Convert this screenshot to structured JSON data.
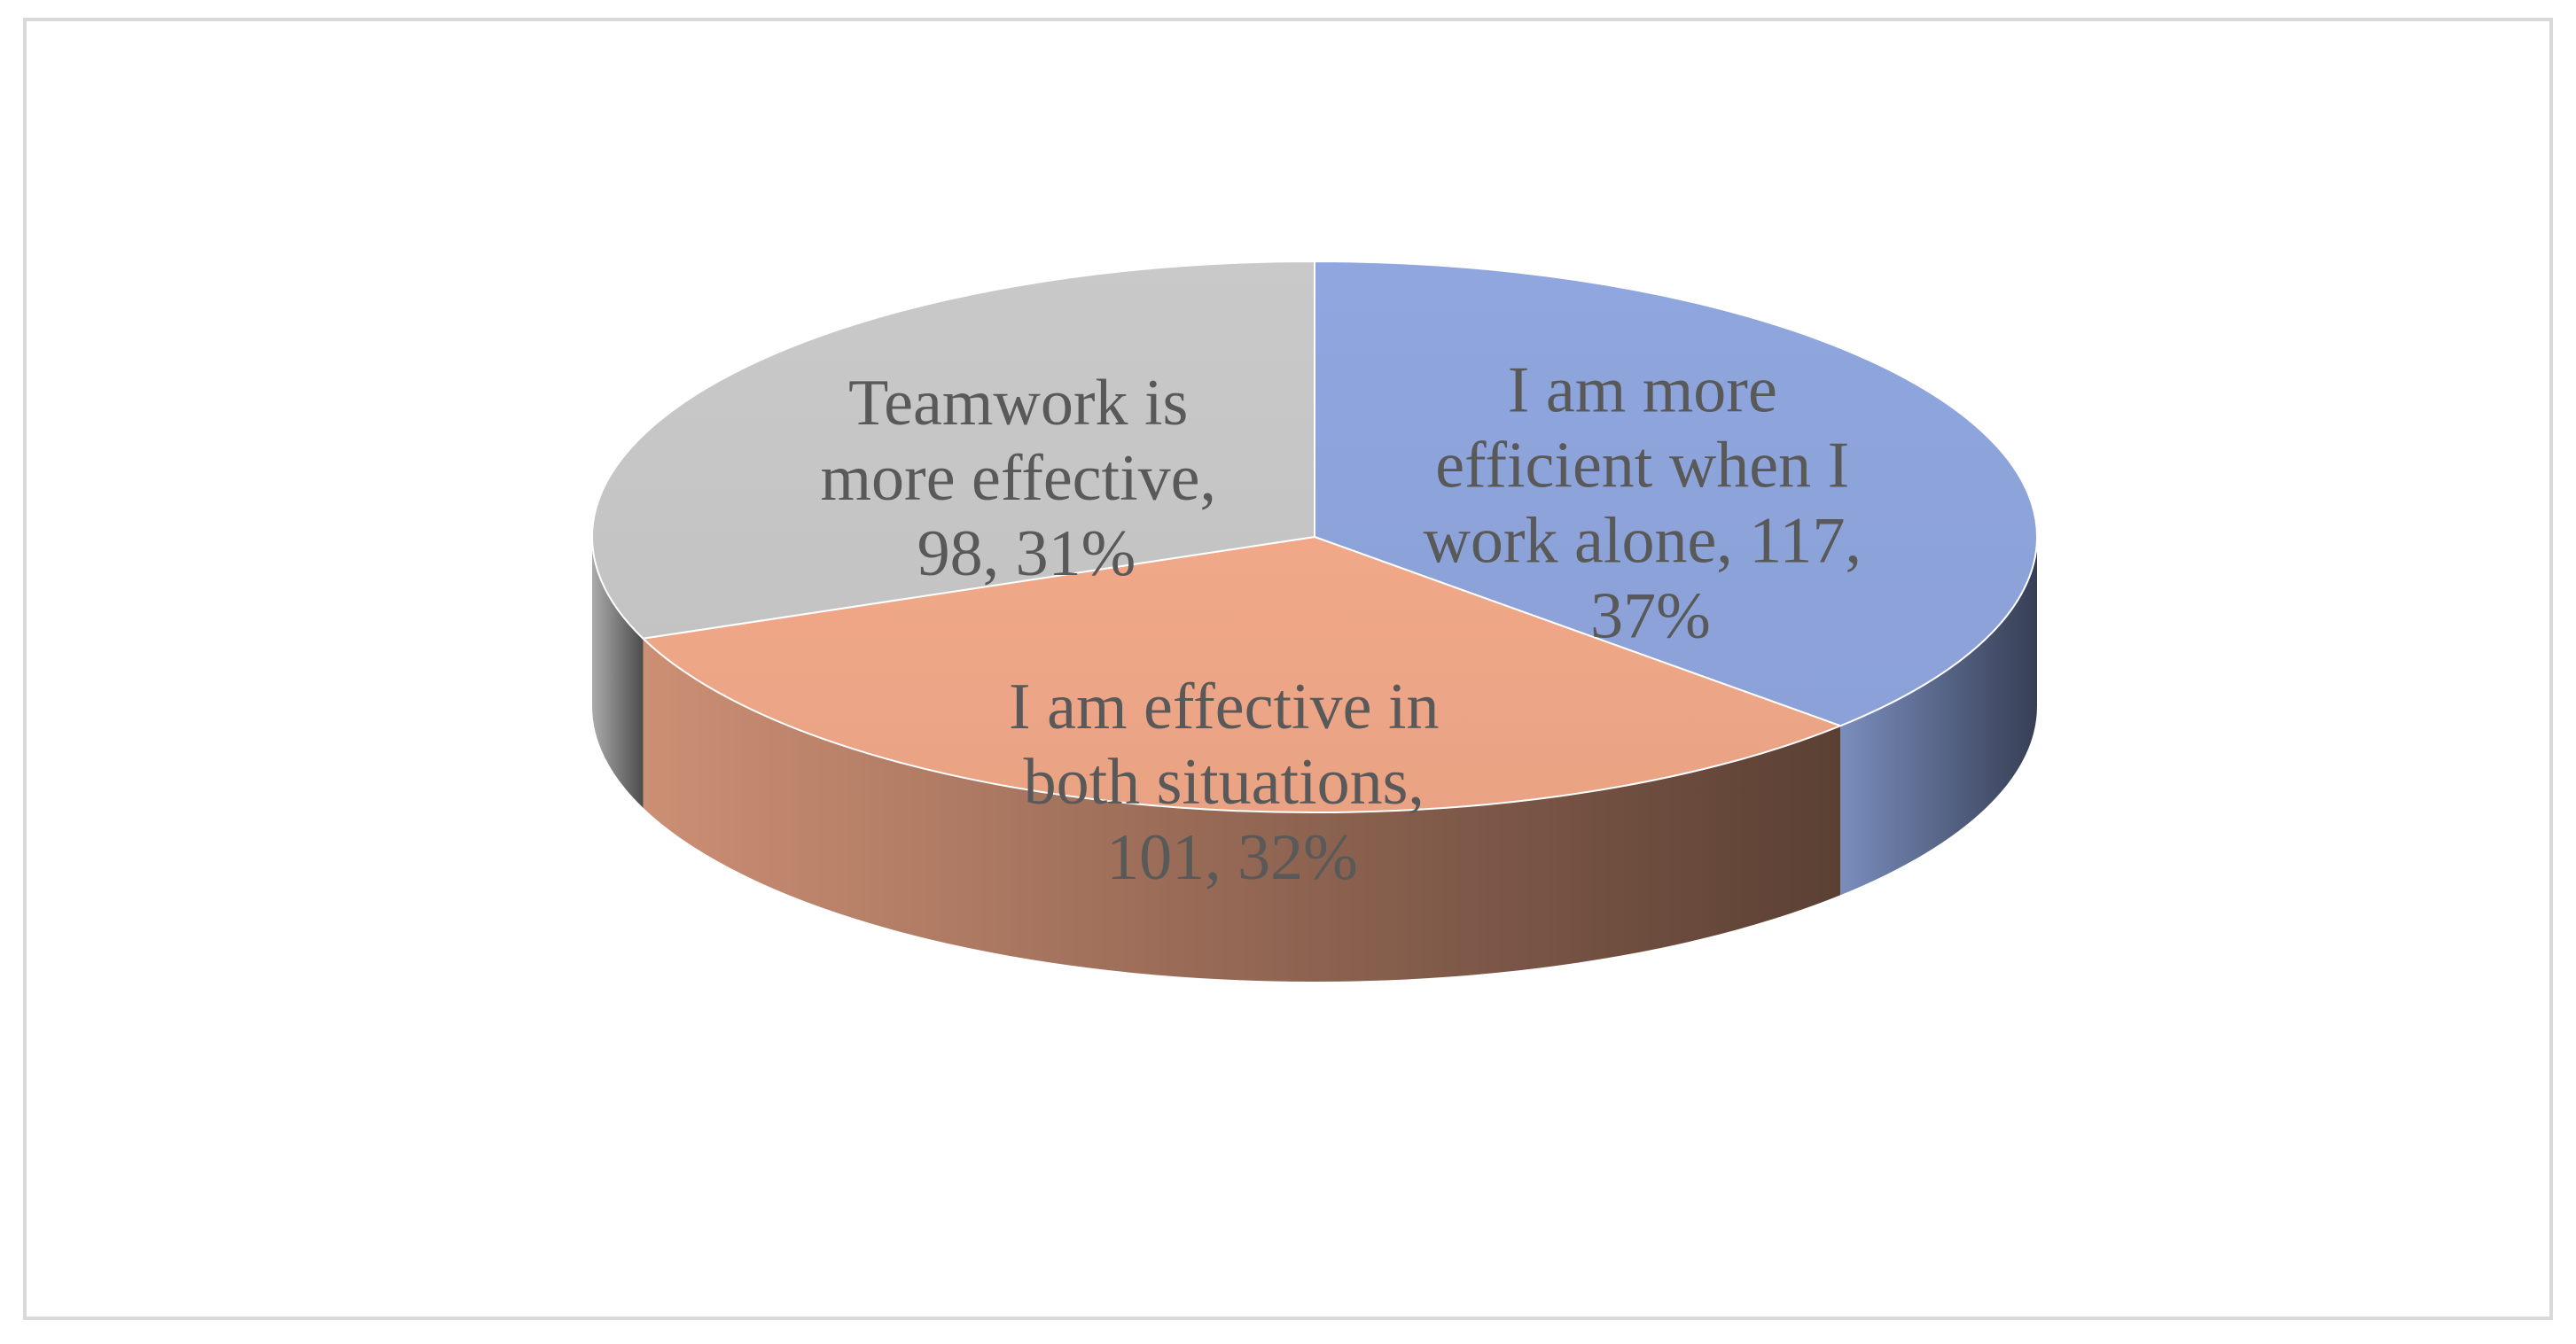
{
  "chart_data": {
    "type": "pie3d",
    "series": [
      {
        "values": [
          117,
          101,
          98
        ],
        "value_labels": [
          "I am more efficient when I work alone, 117, 37%",
          "I am effective in both situations, 101, 32%",
          "Teamwork is more effective, 98, 31%"
        ],
        "colors": [
          "#8fa6de",
          "#f0a888",
          "#c9c9c9"
        ]
      }
    ]
  }
}
